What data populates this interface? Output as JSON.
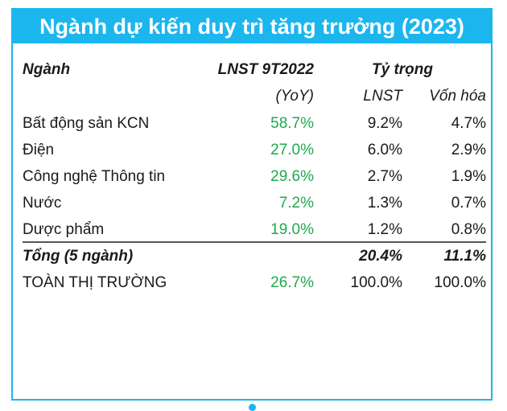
{
  "title": "Ngành dự kiến duy trì tăng trưởng (2023)",
  "header": {
    "col_name": "Ngành",
    "col_lnst": "LNST 9T2022",
    "col_ty_trong": "Tỷ trọng",
    "sub_lnst": "(YoY)",
    "sub_w1": "LNST",
    "sub_w2": "Vốn hóa"
  },
  "rows": [
    {
      "name": "Bất động sản KCN",
      "growth": "58.7%",
      "lnst": "9.2%",
      "vonhoa": "4.7%"
    },
    {
      "name": "Điện",
      "growth": "27.0%",
      "lnst": "6.0%",
      "vonhoa": "2.9%"
    },
    {
      "name": "Công nghệ Thông tin",
      "growth": "29.6%",
      "lnst": "2.7%",
      "vonhoa": "1.9%"
    },
    {
      "name": "Nước",
      "growth": "7.2%",
      "lnst": "1.3%",
      "vonhoa": "0.7%"
    },
    {
      "name": "Dược phẩm",
      "growth": "19.0%",
      "lnst": "1.2%",
      "vonhoa": "0.8%"
    }
  ],
  "total": {
    "name": "Tổng (5 ngành)",
    "growth": "",
    "lnst": "20.4%",
    "vonhoa": "11.1%"
  },
  "market": {
    "name": "TOÀN THỊ TRƯỜNG",
    "growth": "26.7%",
    "lnst": "100.0%",
    "vonhoa": "100.0%"
  },
  "colors": {
    "accent": "#1bb6ee",
    "growth": "#1faa4b"
  }
}
